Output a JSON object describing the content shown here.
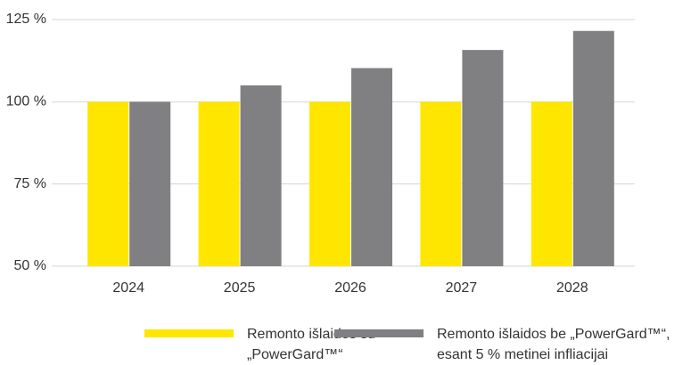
{
  "chart_data": {
    "type": "bar",
    "categories": [
      "2024",
      "2025",
      "2026",
      "2027",
      "2028"
    ],
    "series": [
      {
        "name": "Remonto išlaidos su „PowerGard™“",
        "color": "#ffe600",
        "values": [
          100,
          100,
          100,
          100,
          100
        ]
      },
      {
        "name": "Remonto išlaidos be „PowerGard™“, esant 5 % metinei infliacijai",
        "color": "#808083",
        "values": [
          100,
          105,
          110.25,
          115.76,
          121.55
        ]
      }
    ],
    "ylim": [
      50,
      125
    ],
    "yticks": [
      {
        "value": 50,
        "label": "50 %"
      },
      {
        "value": 75,
        "label": "75 %"
      },
      {
        "value": 100,
        "label": "100 %"
      },
      {
        "value": 125,
        "label": "125 %"
      }
    ],
    "grid": true,
    "legend": "bottom"
  }
}
